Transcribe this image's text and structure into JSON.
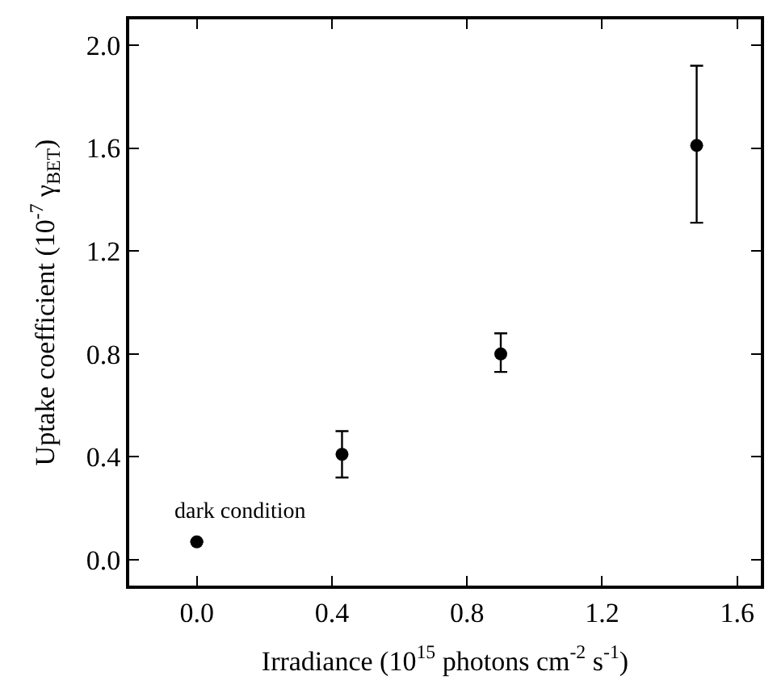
{
  "chart_data": {
    "type": "scatter",
    "xlabel": "Irradiance (10$^{15}$ photons cm$^{-2}$ s$^{-1}$)",
    "ylabel": "Uptake coefficient (10$^{-7}$ γ$_{BET}$)",
    "x": [
      0.0,
      0.43,
      0.9,
      1.48
    ],
    "series": [
      {
        "color": "#000000",
        "values": [
          0.07,
          0.41,
          0.8,
          1.61
        ],
        "errors": [
          null,
          [
            0.32,
            0.5
          ],
          [
            0.73,
            0.88
          ],
          [
            1.31,
            1.92
          ]
        ]
      }
    ],
    "xlim": [
      -0.2,
      1.67
    ],
    "ylim": [
      -0.1,
      2.1
    ],
    "xticks": [
      {
        "value": 0,
        "label": "0.0"
      },
      0.4,
      0.8,
      1.2,
      1.6
    ],
    "yticks": [
      {
        "value": 0,
        "label": "0.0"
      },
      0.4,
      0.8,
      1.2,
      1.6,
      {
        "value": 2,
        "label": "2.0"
      }
    ],
    "annotations": [
      {
        "text": "dark condition",
        "x": 0.0,
        "y": 0.07
      }
    ],
    "marker": "circle"
  }
}
